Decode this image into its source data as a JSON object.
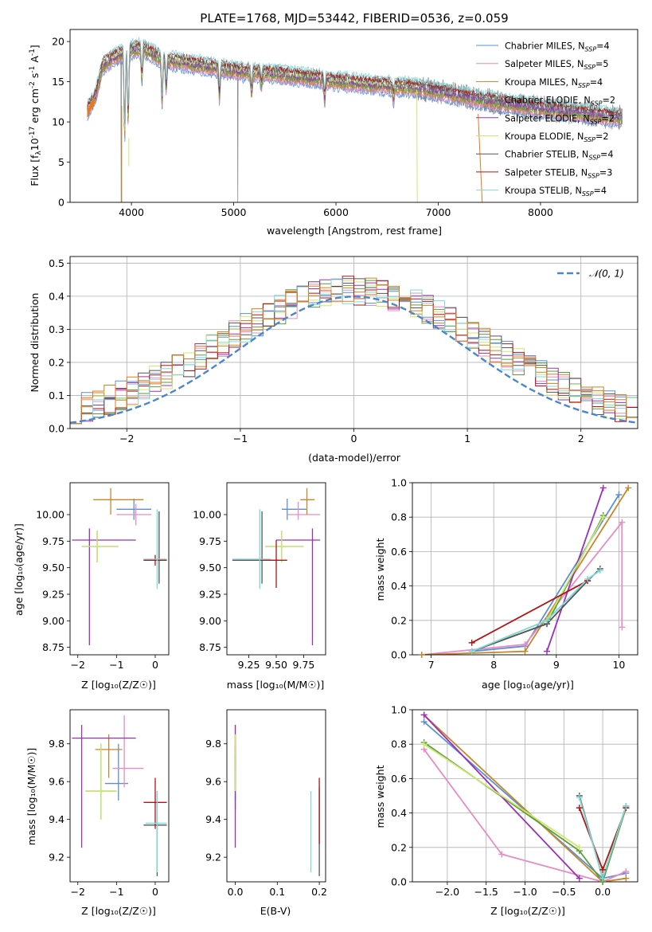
{
  "figure_title": "PLATE=1768, MJD=53442, FIBERID=0536, z=0.059",
  "colors": {
    "c0": "#5b8fd6",
    "c1": "#e88cc1",
    "c2": "#c8862a",
    "c3": "#5a9e3b",
    "c4": "#9b30b8",
    "c5": "#cde870",
    "c6": "#555555",
    "c7": "#b01515",
    "c8": "#7fd8d8",
    "data": "#8a8a8a",
    "orange": "#e8781e"
  },
  "legend_spectrum": [
    {
      "pre": "Chabrier MILES, N",
      "sub": "SSP",
      "post": "=4",
      "color": "#5b8fd6"
    },
    {
      "pre": "Salpeter MILES, N",
      "sub": "SSP",
      "post": "=5",
      "color": "#e88cc1"
    },
    {
      "pre": "Kroupa MILES, N",
      "sub": "SSP",
      "post": "=4",
      "color": "#c8862a"
    },
    {
      "pre": "Chabrier ELODIE, N",
      "sub": "SSP",
      "post": "=2",
      "color": "#5a9e3b"
    },
    {
      "pre": "Salpeter ELODIE, N",
      "sub": "SSP",
      "post": "=2",
      "color": "#9b30b8"
    },
    {
      "pre": "Kroupa ELODIE, N",
      "sub": "SSP",
      "post": "=2",
      "color": "#cde870"
    },
    {
      "pre": "Chabrier STELIB, N",
      "sub": "SSP",
      "post": "=4",
      "color": "#555555"
    },
    {
      "pre": "Salpeter STELIB, N",
      "sub": "SSP",
      "post": "=3",
      "color": "#b01515"
    },
    {
      "pre": "Kroupa STELIB, N",
      "sub": "SSP",
      "post": "=4",
      "color": "#7fd8d8"
    }
  ],
  "labels": {
    "p1_xlabel": "wavelength [Angstrom, rest frame]",
    "p1_ylabel_a": "Flux [f",
    "p1_ylabel_b": "10",
    "p1_ylabel_c": "-17",
    "p1_ylabel_d": " erg cm",
    "p1_ylabel_e": "-2",
    "p1_ylabel_f": " s",
    "p1_ylabel_g": "-1",
    "p1_ylabel_h": " A",
    "p1_ylabel_i": "-1",
    "p1_ylabel_j": "]",
    "p2_xlabel": "(data-model)/error",
    "p2_ylabel": "Normed distribution",
    "p2_legend": "𝒩(0, 1)",
    "age_label": "age  [log₁₀(age/yr)]",
    "z_label": "Z [log₁₀(Z/Z☉)]",
    "mass_label": "mass [log₁₀(M/M☉)]",
    "ebv_label": "E(B-V)",
    "mw_label": "mass weight"
  },
  "chart_data": [
    {
      "type": "line",
      "title": "PLATE=1768, MJD=53442, FIBERID=0536, z=0.059",
      "xlabel": "wavelength [Angstrom, rest frame]",
      "ylabel": "Flux [fλ 10^-17 erg cm^-2 s^-1 A^-1]",
      "xlim": [
        3400,
        8950
      ],
      "ylim": [
        0,
        21.5
      ],
      "xticks": [
        4000,
        5000,
        6000,
        7000,
        8000
      ],
      "yticks": [
        0,
        5,
        10,
        15,
        20
      ],
      "continuum": {
        "x": [
          3570,
          3650,
          3720,
          3800,
          3900,
          4000,
          4100,
          4300,
          4500,
          4800,
          5100,
          5400,
          5800,
          6200,
          6600,
          6800,
          7000,
          7400,
          7800,
          8200,
          8600,
          8800
        ],
        "y": [
          11.5,
          13.2,
          17.0,
          17.8,
          18.5,
          19.0,
          19.2,
          17.8,
          17.4,
          16.8,
          16.2,
          16.0,
          15.4,
          14.8,
          14.4,
          14.2,
          13.8,
          12.8,
          12.0,
          11.4,
          10.8,
          10.5
        ]
      },
      "series_names": [
        "Chabrier MILES, N_SSP=4",
        "Salpeter MILES, N_SSP=5",
        "Kroupa MILES, N_SSP=4",
        "Chabrier ELODIE, N_SSP=2",
        "Salpeter ELODIE, N_SSP=2",
        "Kroupa ELODIE, N_SSP=2",
        "Chabrier STELIB, N_SSP=4",
        "Salpeter STELIB, N_SSP=3",
        "Kroupa STELIB, N_SSP=4"
      ],
      "legend_loc": "upper right"
    },
    {
      "type": "line",
      "xlabel": "(data-model)/error",
      "ylabel": "Normed distribution",
      "xlim": [
        -2.5,
        2.5
      ],
      "ylim": [
        0,
        0.52
      ],
      "xticks": [
        -2,
        -1,
        0,
        1,
        2
      ],
      "yticks": [
        0.0,
        0.1,
        0.2,
        0.3,
        0.4,
        0.5
      ],
      "grid": true,
      "normal_curve": "N(0,1)",
      "legend_loc": "upper right"
    },
    {
      "type": "scatter",
      "xlabel": "Z [log10(Z/Z⊙)]",
      "ylabel": "age [log10(age/yr)]",
      "xlim": [
        -2.2,
        0.35
      ],
      "ylim": [
        8.68,
        10.3
      ],
      "xticks": [
        -2,
        -1,
        0
      ],
      "yticks": [
        8.75,
        9.0,
        9.25,
        9.5,
        9.75,
        10.0
      ],
      "points": [
        {
          "c": "c0",
          "x": -0.55,
          "y": 10.05,
          "xe": [
            -1.0,
            -0.1
          ],
          "ye": [
            9.95,
            10.15
          ]
        },
        {
          "c": "c1",
          "x": -0.5,
          "y": 10.0,
          "xe": [
            -1.0,
            -0.1
          ],
          "ye": [
            9.9,
            10.1
          ]
        },
        {
          "c": "c2",
          "x": -1.15,
          "y": 10.14,
          "xe": [
            -1.6,
            -0.3
          ],
          "ye": [
            10.0,
            10.25
          ]
        },
        {
          "c": "c3",
          "x": -1.5,
          "y": 9.7,
          "xe": [
            -1.9,
            -0.95
          ],
          "ye": [
            9.55,
            9.85
          ]
        },
        {
          "c": "c4",
          "x": -1.7,
          "y": 9.76,
          "xe": [
            -2.15,
            -0.5
          ],
          "ye": [
            8.77,
            9.87
          ]
        },
        {
          "c": "c5",
          "x": -1.5,
          "y": 9.7,
          "xe": [
            -1.9,
            -0.95
          ],
          "ye": [
            9.55,
            9.85
          ]
        },
        {
          "c": "c6",
          "x": 0.1,
          "y": 9.57,
          "xe": [
            -0.3,
            0.3
          ],
          "ye": [
            9.35,
            10.03
          ]
        },
        {
          "c": "c7",
          "x": 0.0,
          "y": 9.57,
          "xe": [
            -0.3,
            0.3
          ],
          "ye": [
            9.52,
            9.62
          ]
        },
        {
          "c": "c8",
          "x": 0.05,
          "y": 9.58,
          "xe": [
            -0.3,
            0.3
          ],
          "ye": [
            9.3,
            10.05
          ]
        }
      ]
    },
    {
      "type": "scatter",
      "xlabel": "mass [log10(M/M⊙)]",
      "ylabel": "",
      "xlim": [
        9.05,
        9.95
      ],
      "ylim": [
        8.68,
        10.3
      ],
      "xticks": [
        9.25,
        9.5,
        9.75
      ],
      "yticks": [
        8.75,
        9.0,
        9.25,
        9.5,
        9.75,
        10.0
      ],
      "points": [
        {
          "c": "c0",
          "x": 9.6,
          "y": 10.05,
          "xe": [
            9.55,
            9.78
          ],
          "ye": [
            9.95,
            10.15
          ]
        },
        {
          "c": "c1",
          "x": 9.7,
          "y": 10.0,
          "xe": [
            9.6,
            9.9
          ],
          "ye": [
            9.95,
            10.12
          ]
        },
        {
          "c": "c2",
          "x": 9.78,
          "y": 10.14,
          "xe": [
            9.72,
            9.85
          ],
          "ye": [
            10.0,
            10.25
          ]
        },
        {
          "c": "c3",
          "x": 9.55,
          "y": 9.7,
          "xe": [
            9.4,
            9.75
          ],
          "ye": [
            9.55,
            9.85
          ]
        },
        {
          "c": "c4",
          "x": 9.83,
          "y": 9.76,
          "xe": [
            9.5,
            9.9
          ],
          "ye": [
            8.77,
            9.87
          ]
        },
        {
          "c": "c5",
          "x": 9.55,
          "y": 9.7,
          "xe": [
            9.4,
            9.75
          ],
          "ye": [
            9.55,
            9.85
          ]
        },
        {
          "c": "c6",
          "x": 9.37,
          "y": 9.57,
          "xe": [
            9.1,
            9.52
          ],
          "ye": [
            9.35,
            10.03
          ]
        },
        {
          "c": "c7",
          "x": 9.5,
          "y": 9.57,
          "xe": [
            9.35,
            9.6
          ],
          "ye": [
            9.31,
            9.76
          ]
        },
        {
          "c": "c8",
          "x": 9.35,
          "y": 9.58,
          "xe": [
            9.1,
            9.45
          ],
          "ye": [
            9.3,
            10.05
          ]
        }
      ]
    },
    {
      "type": "line",
      "xlabel": "age  [log10(age/yr)]",
      "ylabel": "mass weight",
      "xlim": [
        6.7,
        10.3
      ],
      "ylim": [
        0,
        1.0
      ],
      "xticks": [
        7,
        8,
        9,
        10
      ],
      "yticks": [
        0.0,
        0.2,
        0.4,
        0.6,
        0.8,
        1.0
      ],
      "grid": true,
      "series": [
        {
          "c": "c0",
          "x": [
            7.65,
            8.5,
            10.0
          ],
          "y": [
            0.02,
            0.05,
            0.93
          ]
        },
        {
          "c": "c1",
          "x": [
            6.85,
            8.5,
            10.05,
            10.05
          ],
          "y": [
            0.0,
            0.06,
            0.77,
            0.16
          ]
        },
        {
          "c": "c2",
          "x": [
            6.85,
            8.5,
            10.15
          ],
          "y": [
            0.0,
            0.02,
            0.97
          ]
        },
        {
          "c": "c3",
          "x": [
            7.65,
            8.85,
            9.75
          ],
          "y": [
            0.02,
            0.18,
            0.81
          ]
        },
        {
          "c": "c4",
          "x": [
            8.85,
            9.75
          ],
          "y": [
            0.02,
            0.97
          ]
        },
        {
          "c": "c5",
          "x": [
            7.65,
            8.85,
            9.75
          ],
          "y": [
            0.02,
            0.2,
            0.8
          ]
        },
        {
          "c": "c6",
          "x": [
            7.65,
            8.85,
            9.5,
            9.7
          ],
          "y": [
            0.02,
            0.18,
            0.43,
            0.5
          ]
        },
        {
          "c": "c7",
          "x": [
            7.65,
            9.5
          ],
          "y": [
            0.07,
            0.43
          ]
        },
        {
          "c": "c8",
          "x": [
            7.65,
            8.85,
            9.5,
            9.7
          ],
          "y": [
            0.02,
            0.2,
            0.44,
            0.49
          ]
        }
      ]
    },
    {
      "type": "scatter",
      "xlabel": "Z [log10(Z/Z⊙)]",
      "ylabel": "mass [log10(M/M⊙)]",
      "xlim": [
        -2.2,
        0.35
      ],
      "ylim": [
        9.07,
        9.98
      ],
      "xticks": [
        -2,
        -1,
        0
      ],
      "yticks": [
        9.2,
        9.4,
        9.6,
        9.8
      ],
      "points": [
        {
          "c": "c0",
          "x": -0.95,
          "y": 9.59,
          "xe": [
            -1.3,
            -0.7
          ],
          "ye": [
            9.5,
            9.8
          ]
        },
        {
          "c": "c1",
          "x": -0.8,
          "y": 9.67,
          "xe": [
            -1.1,
            -0.3
          ],
          "ye": [
            9.57,
            9.95
          ]
        },
        {
          "c": "c2",
          "x": -1.2,
          "y": 9.77,
          "xe": [
            -1.55,
            -0.85
          ],
          "ye": [
            9.62,
            9.85
          ]
        },
        {
          "c": "c3",
          "x": -1.4,
          "y": 9.55,
          "xe": [
            -1.8,
            -1.0
          ],
          "ye": [
            9.4,
            9.8
          ]
        },
        {
          "c": "c4",
          "x": -1.9,
          "y": 9.83,
          "xe": [
            -2.15,
            -0.5
          ],
          "ye": [
            9.25,
            9.9
          ]
        },
        {
          "c": "c5",
          "x": -1.4,
          "y": 9.55,
          "xe": [
            -1.8,
            -1.0
          ],
          "ye": [
            9.4,
            9.8
          ]
        },
        {
          "c": "c6",
          "x": 0.05,
          "y": 9.37,
          "xe": [
            -0.3,
            0.3
          ],
          "ye": [
            9.1,
            9.55
          ]
        },
        {
          "c": "c7",
          "x": 0.0,
          "y": 9.49,
          "xe": [
            -0.3,
            0.3
          ],
          "ye": [
            9.35,
            9.62
          ]
        },
        {
          "c": "c8",
          "x": 0.05,
          "y": 9.38,
          "xe": [
            -0.25,
            0.3
          ],
          "ye": [
            9.12,
            9.55
          ]
        }
      ]
    },
    {
      "type": "scatter",
      "xlabel": "E(B-V)",
      "ylabel": "",
      "xlim": [
        -0.02,
        0.215
      ],
      "ylim": [
        9.07,
        9.98
      ],
      "xticks": [
        0.0,
        0.1,
        0.2
      ],
      "yticks": [
        9.2,
        9.4,
        9.6,
        9.8
      ],
      "points": [
        {
          "c": "c0",
          "x": 0.0,
          "y": 9.59,
          "xe": [
            0.0,
            0.0
          ],
          "ye": [
            9.5,
            9.8
          ]
        },
        {
          "c": "c1",
          "x": 0.0,
          "y": 9.67,
          "xe": [
            0.0,
            0.0
          ],
          "ye": [
            9.57,
            9.9
          ]
        },
        {
          "c": "c2",
          "x": 0.0,
          "y": 9.77,
          "xe": [
            0.0,
            0.0
          ],
          "ye": [
            9.65,
            9.85
          ]
        },
        {
          "c": "c3",
          "x": 0.0,
          "y": 9.55,
          "xe": [
            0.0,
            0.0
          ],
          "ye": [
            9.45,
            9.75
          ]
        },
        {
          "c": "c4",
          "x": 0.0,
          "y": 9.5,
          "xe": [
            0.0,
            0.0
          ],
          "ye": [
            9.25,
            9.9
          ]
        },
        {
          "c": "c5",
          "x": 0.0,
          "y": 9.7,
          "xe": [
            0.0,
            0.0
          ],
          "ye": [
            9.55,
            9.85
          ]
        },
        {
          "c": "c6",
          "x": 0.2,
          "y": 9.38,
          "xe": [
            0.2,
            0.2
          ],
          "ye": [
            9.1,
            9.57
          ]
        },
        {
          "c": "c7",
          "x": 0.2,
          "y": 9.45,
          "xe": [
            0.2,
            0.2
          ],
          "ye": [
            9.27,
            9.62
          ]
        },
        {
          "c": "c8",
          "x": 0.18,
          "y": 9.3,
          "xe": [
            0.18,
            0.18
          ],
          "ye": [
            9.12,
            9.55
          ]
        }
      ]
    },
    {
      "type": "line",
      "xlabel": "Z [log10(Z/Z⊙)]",
      "ylabel": "mass weight",
      "xlim": [
        -2.45,
        0.45
      ],
      "ylim": [
        0,
        1.0
      ],
      "xticks": [
        -2.0,
        -1.5,
        -1.0,
        -0.5,
        0.0
      ],
      "yticks": [
        0.0,
        0.2,
        0.4,
        0.6,
        0.8,
        1.0
      ],
      "grid": true,
      "series": [
        {
          "c": "c0",
          "x": [
            -2.3,
            0.0,
            0.3
          ],
          "y": [
            0.93,
            0.02,
            0.05
          ]
        },
        {
          "c": "c1",
          "x": [
            -2.3,
            -1.3,
            0.0,
            0.3
          ],
          "y": [
            0.77,
            0.16,
            0.0,
            0.06
          ]
        },
        {
          "c": "c2",
          "x": [
            -2.3,
            0.0,
            0.3
          ],
          "y": [
            0.97,
            0.0,
            0.02
          ]
        },
        {
          "c": "c3",
          "x": [
            -2.3,
            -0.3,
            0.0,
            0.3
          ],
          "y": [
            0.81,
            0.18,
            0.0,
            0.43
          ]
        },
        {
          "c": "c4",
          "x": [
            -2.3,
            -0.3
          ],
          "y": [
            0.97,
            0.02
          ]
        },
        {
          "c": "c5",
          "x": [
            -2.3,
            -0.3
          ],
          "y": [
            0.8,
            0.2
          ]
        },
        {
          "c": "c6",
          "x": [
            -0.3,
            0.0,
            0.3
          ],
          "y": [
            0.5,
            0.02,
            0.44
          ]
        },
        {
          "c": "c7",
          "x": [
            -0.3,
            0.0,
            0.3
          ],
          "y": [
            0.43,
            0.07,
            0.43
          ]
        },
        {
          "c": "c8",
          "x": [
            -0.3,
            0.0,
            0.3
          ],
          "y": [
            0.49,
            0.02,
            0.44
          ]
        }
      ]
    }
  ]
}
